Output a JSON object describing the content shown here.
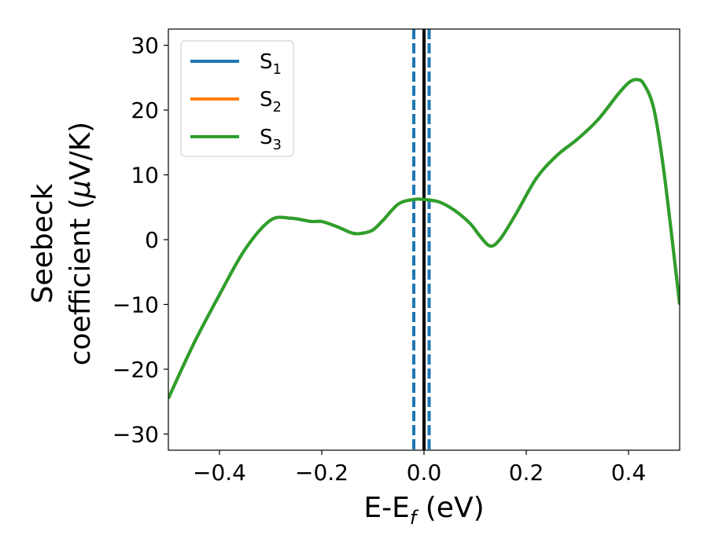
{
  "chart_data": {
    "type": "line",
    "title": "",
    "xlabel": "E-E",
    "xlabel_sub": "f",
    "xlabel_suffix": " (eV)",
    "ylabel_line1": "Seebeck",
    "ylabel_line2": "coefficient  (",
    "ylabel_mu": "μ",
    "ylabel_line2_end": "V/K)",
    "xlim": [
      -0.5,
      0.5
    ],
    "ylim": [
      -32.5,
      32.5
    ],
    "xticks": [
      -0.4,
      -0.2,
      0.0,
      0.2,
      0.4
    ],
    "xtick_labels": [
      "−0.4",
      "−0.2",
      "0.0",
      "0.2",
      "0.4"
    ],
    "yticks": [
      -30,
      -20,
      -10,
      0,
      10,
      20,
      30
    ],
    "ytick_labels": [
      "−30",
      "−20",
      "−10",
      "0",
      "10",
      "20",
      "30"
    ],
    "grid": false,
    "legend_position": "top-left",
    "vertical_lines": [
      {
        "x": -0.02,
        "style": "dashed",
        "color": "#1f77b4"
      },
      {
        "x": 0.0,
        "style": "solid",
        "color": "#000000"
      },
      {
        "x": 0.01,
        "style": "dashed",
        "color": "#1f77b4"
      }
    ],
    "x": [
      -0.5,
      -0.45,
      -0.4,
      -0.35,
      -0.3,
      -0.26,
      -0.22,
      -0.2,
      -0.17,
      -0.14,
      -0.12,
      -0.1,
      -0.08,
      -0.05,
      -0.02,
      0.0,
      0.03,
      0.06,
      0.09,
      0.11,
      0.13,
      0.15,
      0.18,
      0.22,
      0.26,
      0.3,
      0.34,
      0.38,
      0.4,
      0.415,
      0.43,
      0.45,
      0.47,
      0.5
    ],
    "series": [
      {
        "name": "S",
        "sub": "1",
        "color": "#1f77b4",
        "values": [
          -24.5,
          -16,
          -8.5,
          -1.5,
          3,
          3.3,
          2.8,
          2.8,
          2,
          1,
          1,
          1.5,
          3,
          5.5,
          6.2,
          6.2,
          5.8,
          4.5,
          2.5,
          0.5,
          -1,
          0.2,
          4,
          9.5,
          13,
          15.5,
          18.5,
          22.5,
          24.2,
          24.7,
          24,
          20,
          10,
          -10
        ]
      },
      {
        "name": "S",
        "sub": "2",
        "color": "#ff7f0e",
        "values": [
          -24.5,
          -16,
          -8.5,
          -1.5,
          3,
          3.3,
          2.8,
          2.8,
          2,
          1,
          1,
          1.5,
          3,
          5.5,
          6.2,
          6.2,
          5.8,
          4.5,
          2.5,
          0.5,
          -1,
          0.2,
          4,
          9.5,
          13,
          15.5,
          18.5,
          22.5,
          24.2,
          24.7,
          24,
          20,
          10,
          -10
        ]
      },
      {
        "name": "S",
        "sub": "3",
        "color": "#2ca02c",
        "values": [
          -24.5,
          -16,
          -8.5,
          -1.5,
          3,
          3.3,
          2.8,
          2.8,
          2,
          1,
          1,
          1.5,
          3,
          5.5,
          6.2,
          6.2,
          5.8,
          4.5,
          2.5,
          0.5,
          -1,
          0.2,
          4,
          9.5,
          13,
          15.5,
          18.5,
          22.5,
          24.2,
          24.7,
          24,
          20,
          10,
          -10
        ]
      }
    ]
  }
}
